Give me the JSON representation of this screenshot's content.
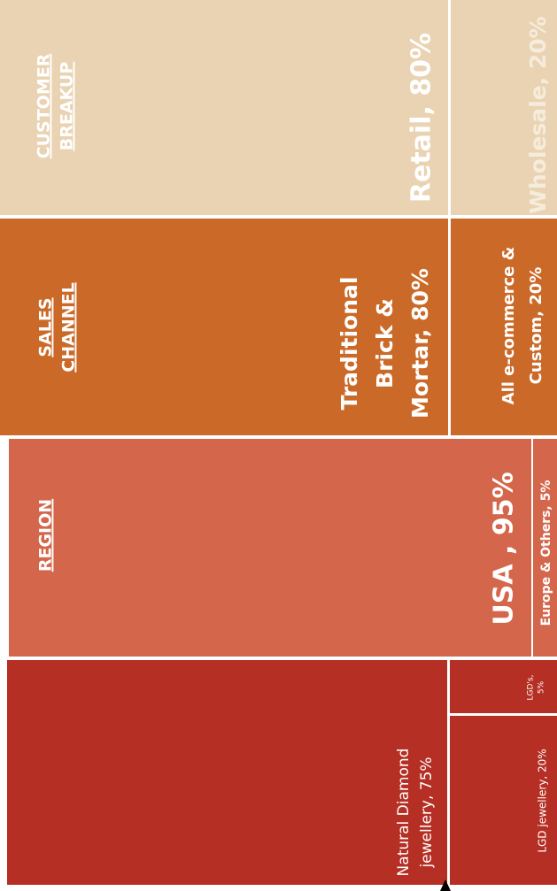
{
  "sections": [
    {
      "header": [
        "CUSTOMER",
        "BREAKUP"
      ],
      "cells": [
        {
          "label": [
            "Retail, 80%"
          ]
        },
        {
          "label": [
            "Wholesale, 20%"
          ]
        }
      ]
    },
    {
      "header": [
        "SALES",
        "CHANNEL"
      ],
      "cells": [
        {
          "label": [
            "Traditional",
            "Brick &",
            "Mortar, 80%"
          ]
        },
        {
          "label": [
            "All e-commerce &",
            "Custom, 20%"
          ]
        }
      ]
    },
    {
      "header": [
        "REGION"
      ],
      "cells": [
        {
          "label": [
            "USA , 95%"
          ]
        },
        {
          "label": [
            "Europe & Others, 5%"
          ]
        }
      ]
    },
    {
      "cells": [
        {
          "label": [
            "Natural Diamond",
            "jewellery, 75%"
          ]
        },
        {
          "label": [
            "LGD jewellery, 20%"
          ]
        },
        {
          "label": [
            "LGD's,",
            "5%"
          ]
        }
      ]
    }
  ]
}
